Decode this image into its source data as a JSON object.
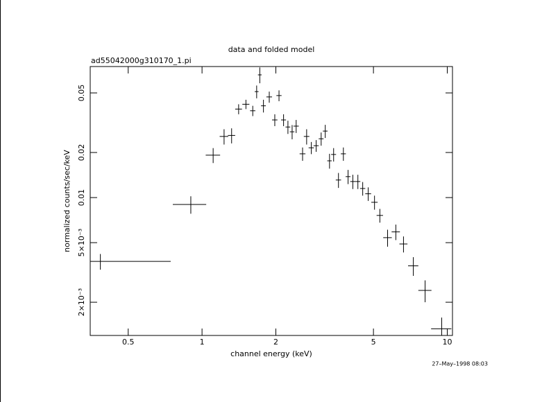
{
  "chart_data": {
    "type": "scatter",
    "title": "data and folded model",
    "subtitle": "ad55042000g310170_1.pi",
    "x_label": "channel energy (keV)",
    "y_label": "normalized counts/sec/keV",
    "timestamp": "27–May–1998 08:03",
    "color": "#000000",
    "log_x": true,
    "log_y": true,
    "xlim": [
      0.35,
      10.5
    ],
    "ylim": [
      0.0012,
      0.075
    ],
    "xticks": [
      0.5,
      1,
      2,
      5,
      10
    ],
    "yticks": [
      {
        "value": 0.002,
        "label": "2×10⁻³"
      },
      {
        "value": 0.005,
        "label": "5×10⁻³"
      },
      0.01,
      0.02,
      0.05
    ],
    "x": [
      0.385,
      0.9,
      1.11,
      1.23,
      1.32,
      1.41,
      1.51,
      1.61,
      1.67,
      1.72,
      1.78,
      1.88,
      1.98,
      2.06,
      2.15,
      2.24,
      2.33,
      2.42,
      2.57,
      2.67,
      2.79,
      2.92,
      3.06,
      3.18,
      3.31,
      3.44,
      3.6,
      3.77,
      3.94,
      4.12,
      4.32,
      4.52,
      4.76,
      5.05,
      5.31,
      5.71,
      6.17,
      6.63,
      7.27,
      8.12,
      9.49
    ],
    "xerr": [
      0.36,
      0.14,
      0.075,
      0.05,
      0.045,
      0.045,
      0.05,
      0.04,
      0.03,
      0.03,
      0.04,
      0.05,
      0.05,
      0.05,
      0.05,
      0.05,
      0.05,
      0.06,
      0.07,
      0.07,
      0.07,
      0.07,
      0.07,
      0.07,
      0.07,
      0.08,
      0.09,
      0.09,
      0.09,
      0.1,
      0.1,
      0.11,
      0.13,
      0.15,
      0.16,
      0.23,
      0.24,
      0.25,
      0.35,
      0.5,
      0.9
    ],
    "values": [
      0.00375,
      0.009,
      0.0192,
      0.0256,
      0.026,
      0.039,
      0.042,
      0.038,
      0.051,
      0.066,
      0.041,
      0.047,
      0.033,
      0.048,
      0.033,
      0.0296,
      0.0275,
      0.03,
      0.0196,
      0.0256,
      0.0215,
      0.0222,
      0.0247,
      0.0278,
      0.0176,
      0.0194,
      0.0131,
      0.0196,
      0.0138,
      0.0128,
      0.0128,
      0.0115,
      0.0106,
      0.0093,
      0.0076,
      0.0054,
      0.0059,
      0.0049,
      0.0035,
      0.0024,
      0.00133
    ],
    "yerr": [
      0.00045,
      0.0012,
      0.0022,
      0.003,
      0.003,
      0.003,
      0.003,
      0.003,
      0.005,
      0.008,
      0.004,
      0.004,
      0.003,
      0.004,
      0.003,
      0.003,
      0.003,
      0.003,
      0.002,
      0.003,
      0.002,
      0.002,
      0.0025,
      0.0028,
      0.002,
      0.002,
      0.0015,
      0.002,
      0.0015,
      0.0014,
      0.0014,
      0.0012,
      0.0011,
      0.001,
      0.0008,
      0.0007,
      0.0007,
      0.0006,
      0.0005,
      0.0004,
      0.00025
    ]
  }
}
